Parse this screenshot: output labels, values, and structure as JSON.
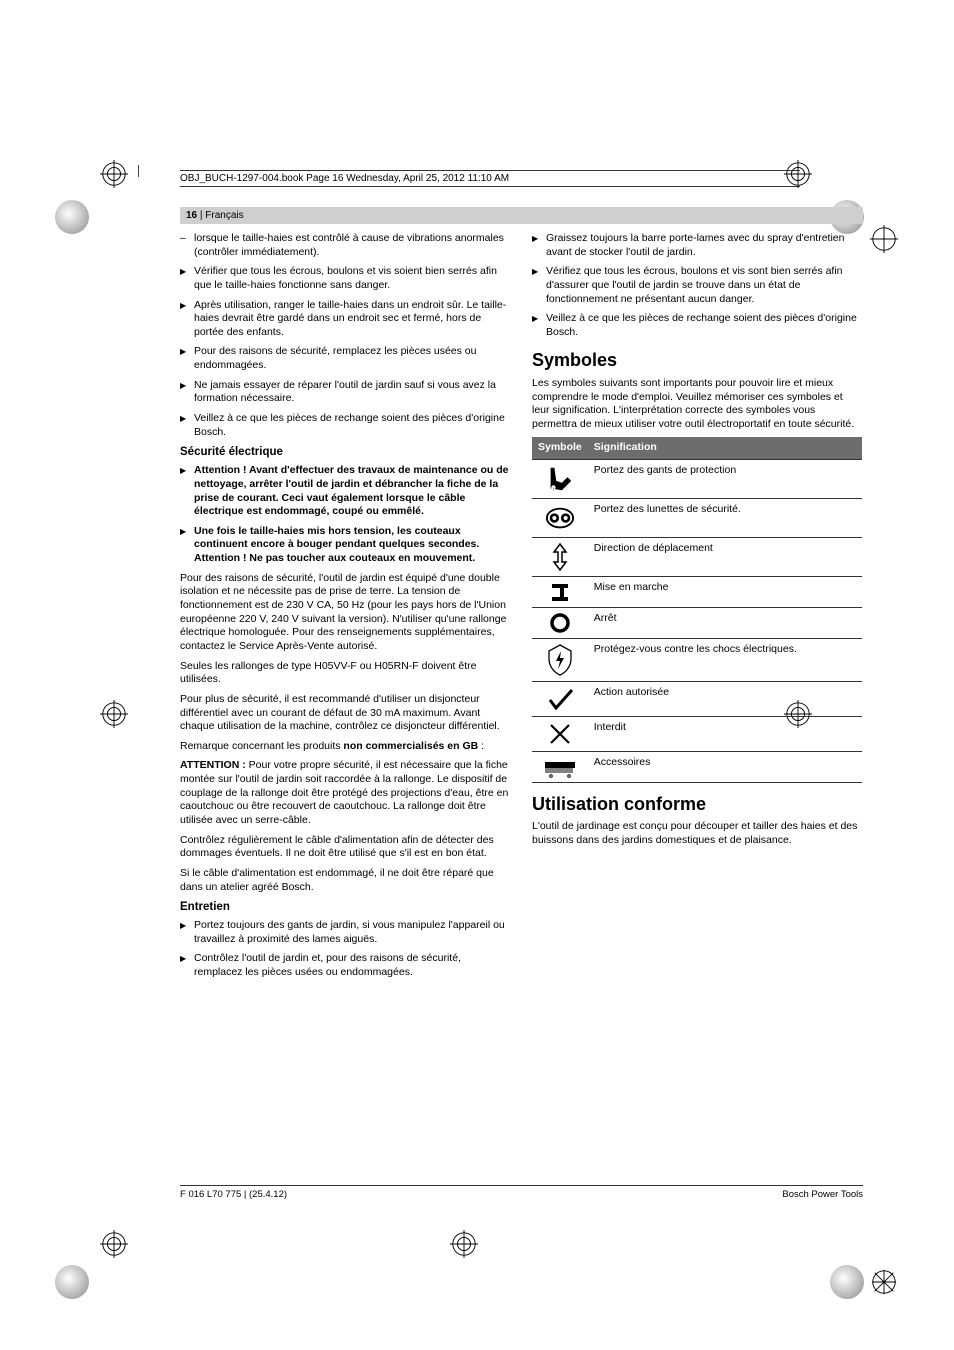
{
  "headline": "OBJ_BUCH-1297-004.book  Page 16  Wednesday, April 25, 2012  11:10 AM",
  "header": {
    "page": "16",
    "sep": " | ",
    "lang": "Français"
  },
  "left": {
    "items1": [
      {
        "kind": "dash",
        "text": "lorsque le taille-haies est contrôlé à cause de vibrations anormales (contrôler immédiatement)."
      },
      {
        "kind": "tri",
        "text": "Vérifier que tous les écrous, boulons et vis soient bien serrés afin que le taille-haies fonctionne sans danger."
      },
      {
        "kind": "tri",
        "text": "Après utilisation, ranger le taille-haies dans un endroit sûr. Le taille-haies devrait être gardé dans un endroit sec et fermé, hors de portée des enfants."
      },
      {
        "kind": "tri",
        "text": "Pour des raisons de sécurité, remplacez les pièces usées ou endommagées."
      },
      {
        "kind": "tri",
        "text": "Ne jamais essayer de réparer l'outil de jardin sauf si vous avez la formation nécessaire."
      },
      {
        "kind": "tri",
        "text": "Veillez à ce que les pièces de rechange soient des pièces d'origine Bosch."
      }
    ],
    "h_elec": "Sécurité électrique",
    "elec_bold": [
      "Attention ! Avant d'effectuer des travaux de maintenance ou de nettoyage, arrêter l'outil de jardin et débrancher la fiche de la prise de courant. Ceci vaut également lorsque le câble électrique est endommagé, coupé ou emmêlé.",
      "Une fois le taille-haies mis hors tension, les couteaux continuent encore à bouger pendant quelques secondes. Attention ! Ne pas toucher aux couteaux en mouvement."
    ],
    "para1": "Pour des raisons de sécurité, l'outil de jardin est équipé d'une double isolation et ne nécessite pas de prise de terre. La tension de fonctionnement est de 230 V CA, 50 Hz (pour les pays hors de l'Union européenne 220 V, 240 V suivant la version). N'utiliser qu'une rallonge électrique homologuée. Pour des renseignements supplémentaires, contactez le Service Après-Vente autorisé.",
    "para2": "Seules les rallonges de type H05VV-F ou H05RN-F doivent être utilisées.",
    "para3": "Pour plus de sécurité, il est recommandé d'utiliser un disjoncteur différentiel avec un courant de défaut de 30 mA maximum. Avant chaque utilisation de la machine, contrôlez ce disjoncteur différentiel.",
    "para4_a": "Remarque concernant les produits ",
    "para4_b": "non commercialisés en GB",
    "para4_c": " :",
    "para5_a": "ATTENTION :",
    "para5_b": " Pour votre propre sécurité, il est nécessaire que la fiche montée sur l'outil de jardin soit raccordée à la rallonge. Le dispositif de couplage de la rallonge doit être protégé des projections d'eau, être en caoutchouc ou être recouvert de caoutchouc. La rallonge doit être utilisée avec un serre-câble.",
    "para6": "Contrôlez régulièrement le câble d'alimentation afin de détecter des dommages éventuels. Il ne doit être utilisé que s'il est en bon état.",
    "para7": "Si le câble d'alimentation est endommagé, il ne doit être réparé que dans un atelier agréé Bosch.",
    "h_ent": "Entretien",
    "ent": [
      "Portez toujours des gants de jardin, si vous manipulez l'appareil ou travaillez à proximité des lames aiguës.",
      "Contrôlez l'outil de jardin et, pour des raisons de sécurité, remplacez les pièces usées ou endommagées."
    ]
  },
  "right": {
    "top": [
      "Graissez toujours la barre porte-lames avec du spray d'entretien avant de stocker l'outil de jardin.",
      "Vérifiez que tous les écrous, boulons et vis sont bien serrés afin d'assurer que l'outil de jardin se trouve dans un état de fonctionnement ne présentant aucun danger.",
      "Veillez à ce que les pièces de rechange soient des pièces d'origine Bosch."
    ],
    "h_sym": "Symboles",
    "sym_intro": "Les symboles suivants sont importants pour pouvoir lire et mieux comprendre le mode d'emploi. Veuillez mémoriser ces symboles et leur signification. L'interprétation correcte des symboles vous permettra de mieux utiliser votre outil électroportatif en toute sécurité.",
    "th1": "Symbole",
    "th2": "Signification",
    "rows": [
      {
        "icon": "gloves",
        "text": "Portez des gants de protection"
      },
      {
        "icon": "goggles",
        "text": "Portez des lunettes de sécurité."
      },
      {
        "icon": "move",
        "text": "Direction de déplacement"
      },
      {
        "icon": "on",
        "text": "Mise en marche"
      },
      {
        "icon": "off",
        "text": "Arrêt"
      },
      {
        "icon": "shock",
        "text": "Protégez-vous contre les chocs électriques."
      },
      {
        "icon": "check",
        "text": "Action autorisée"
      },
      {
        "icon": "cross",
        "text": "Interdit"
      },
      {
        "icon": "brush",
        "text": "Accessoires"
      }
    ],
    "h_util": "Utilisation conforme",
    "util": "L'outil de jardinage est conçu pour découper et tailler des haies et des buissons dans des jardins domestiques et de plaisance."
  },
  "footer": {
    "left": "F 016 L70 775 | (25.4.12)",
    "right": "Bosch Power Tools"
  }
}
